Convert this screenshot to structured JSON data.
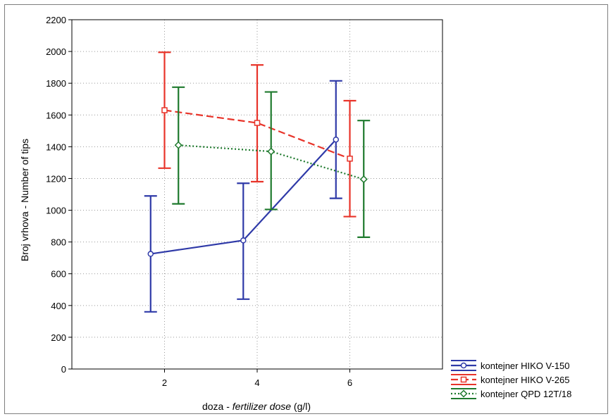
{
  "chart_data": {
    "type": "line",
    "xlabel_plain": "doza - ",
    "xlabel_italic": "fertilizer dose",
    "xlabel_unit": " (g/l)",
    "ylabel": "Broj vrhova - Number of tips",
    "x_ticks": [
      2,
      4,
      6
    ],
    "xlim": [
      0,
      8
    ],
    "ylim": [
      0,
      2200
    ],
    "y_ticks": [
      0,
      200,
      400,
      600,
      800,
      1000,
      1200,
      1400,
      1600,
      1800,
      2000,
      2200
    ],
    "grid": true,
    "legend_position": "bottom-right-outside",
    "series": [
      {
        "name": "kontejner HIKO V-150",
        "color": "#2f3aa8",
        "line_style": "solid",
        "marker": "circle",
        "points": [
          {
            "x": 2,
            "y": 725,
            "low": 360,
            "high": 1090
          },
          {
            "x": 4,
            "y": 810,
            "low": 440,
            "high": 1170
          },
          {
            "x": 6,
            "y": 1445,
            "low": 1075,
            "high": 1815
          }
        ]
      },
      {
        "name": "kontejner HIKO V-265",
        "color": "#e8342a",
        "line_style": "dashed",
        "marker": "square",
        "points": [
          {
            "x": 2,
            "y": 1630,
            "low": 1265,
            "high": 1995
          },
          {
            "x": 4,
            "y": 1550,
            "low": 1180,
            "high": 1915
          },
          {
            "x": 6,
            "y": 1325,
            "low": 960,
            "high": 1690
          }
        ]
      },
      {
        "name": "kontejner QPD 12T/18",
        "color": "#1f7a2e",
        "line_style": "dotted",
        "marker": "diamond",
        "points": [
          {
            "x": 2,
            "y": 1410,
            "low": 1040,
            "high": 1775
          },
          {
            "x": 4,
            "y": 1370,
            "low": 1005,
            "high": 1745
          },
          {
            "x": 6,
            "y": 1195,
            "low": 830,
            "high": 1565
          }
        ]
      }
    ]
  }
}
